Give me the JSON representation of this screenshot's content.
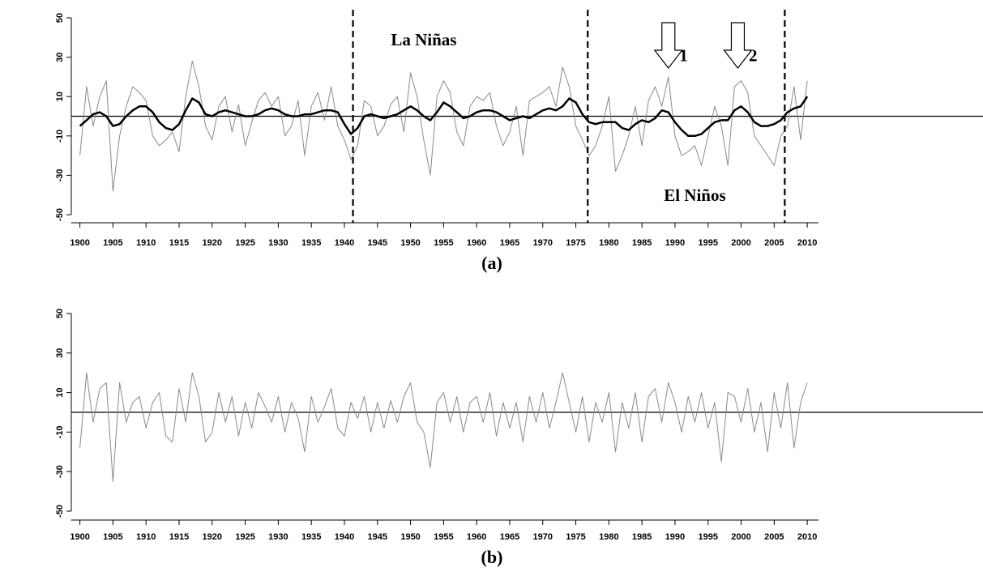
{
  "chart_data": [
    {
      "type": "line",
      "caption": "(a)",
      "x": [
        1900,
        1901,
        1902,
        1903,
        1904,
        1905,
        1906,
        1907,
        1908,
        1909,
        1910,
        1911,
        1912,
        1913,
        1914,
        1915,
        1916,
        1917,
        1918,
        1919,
        1920,
        1921,
        1922,
        1923,
        1924,
        1925,
        1926,
        1927,
        1928,
        1929,
        1930,
        1931,
        1932,
        1933,
        1934,
        1935,
        1936,
        1937,
        1938,
        1939,
        1940,
        1941,
        1942,
        1943,
        1944,
        1945,
        1946,
        1947,
        1948,
        1949,
        1950,
        1951,
        1952,
        1953,
        1954,
        1955,
        1956,
        1957,
        1958,
        1959,
        1960,
        1961,
        1962,
        1963,
        1964,
        1965,
        1966,
        1967,
        1968,
        1969,
        1970,
        1971,
        1972,
        1973,
        1974,
        1975,
        1976,
        1977,
        1978,
        1979,
        1980,
        1981,
        1982,
        1983,
        1984,
        1985,
        1986,
        1987,
        1988,
        1989,
        1990,
        1991,
        1992,
        1993,
        1994,
        1995,
        1996,
        1997,
        1998,
        1999,
        2000,
        2001,
        2002,
        2003,
        2004,
        2005,
        2006,
        2007,
        2008,
        2009,
        2010
      ],
      "series": [
        {
          "color": "#8a8a8a",
          "width": 1,
          "values": [
            -20,
            15,
            -5,
            10,
            18,
            -38,
            -10,
            5,
            15,
            12,
            8,
            -10,
            -15,
            -12,
            -8,
            -18,
            10,
            28,
            15,
            -5,
            -12,
            5,
            10,
            -8,
            6,
            -15,
            -3,
            8,
            12,
            5,
            10,
            -10,
            -5,
            8,
            -20,
            5,
            12,
            -2,
            15,
            -5,
            -12,
            -22,
            -15,
            8,
            5,
            -10,
            -5,
            6,
            10,
            -8,
            22,
            10,
            -12,
            -30,
            10,
            18,
            12,
            -8,
            -15,
            5,
            10,
            8,
            12,
            -5,
            -15,
            -8,
            5,
            -20,
            8,
            10,
            12,
            15,
            5,
            25,
            15,
            -5,
            -12,
            -20,
            -15,
            -5,
            10,
            -28,
            -20,
            -10,
            5,
            -15,
            8,
            15,
            5,
            20,
            -10,
            -20,
            -18,
            -15,
            -25,
            -10,
            5,
            -5,
            -25,
            15,
            18,
            12,
            -10,
            -15,
            -20,
            -25,
            -10,
            -5,
            15,
            -12,
            18
          ]
        },
        {
          "color": "#000000",
          "width": 2.5,
          "values": [
            -5,
            -2,
            1,
            2,
            0,
            -5,
            -4,
            0,
            3,
            5,
            5,
            2,
            -3,
            -6,
            -7,
            -4,
            3,
            9,
            7,
            1,
            0,
            2,
            3,
            2,
            1,
            0,
            0,
            1,
            3,
            4,
            3,
            1,
            0,
            0,
            1,
            1,
            2,
            3,
            3,
            2,
            -4,
            -9,
            -6,
            0,
            1,
            0,
            -1,
            0,
            1,
            3,
            5,
            3,
            0,
            -2,
            2,
            7,
            5,
            2,
            -1,
            0,
            2,
            3,
            3,
            2,
            0,
            -2,
            -1,
            0,
            -1,
            1,
            3,
            4,
            3,
            5,
            9,
            7,
            1,
            -3,
            -4,
            -3,
            -3,
            -3,
            -6,
            -7,
            -4,
            -2,
            -3,
            -1,
            3,
            2,
            -3,
            -7,
            -10,
            -10,
            -9,
            -6,
            -3,
            -2,
            -2,
            3,
            5,
            2,
            -3,
            -5,
            -5,
            -4,
            -2,
            2,
            4,
            5,
            10
          ]
        }
      ],
      "hline": 0,
      "vlines": [
        1941.3,
        1976.8,
        2006.6
      ],
      "arrows_x": [
        1989,
        1999.5
      ],
      "annotations": [
        {
          "text": "La Niñas",
          "x": 1952,
          "y": 38
        },
        {
          "text": "El Niños",
          "x": 1993,
          "y": -41
        },
        {
          "text": "1",
          "x": 1991.3,
          "y": 30
        },
        {
          "text": "2",
          "x": 2001.8,
          "y": 30
        }
      ],
      "xlim": [
        1898.7,
        2011.7
      ],
      "ylim": [
        -50,
        50
      ],
      "xticks": [
        1900,
        1905,
        1910,
        1915,
        1920,
        1925,
        1930,
        1935,
        1940,
        1945,
        1950,
        1955,
        1960,
        1965,
        1970,
        1975,
        1980,
        1985,
        1990,
        1995,
        2000,
        2005,
        2010
      ],
      "yticks": [
        50,
        30,
        10,
        -10,
        -30,
        -50
      ]
    },
    {
      "type": "line",
      "caption": "(b)",
      "x": [
        1900,
        1901,
        1902,
        1903,
        1904,
        1905,
        1906,
        1907,
        1908,
        1909,
        1910,
        1911,
        1912,
        1913,
        1914,
        1915,
        1916,
        1917,
        1918,
        1919,
        1920,
        1921,
        1922,
        1923,
        1924,
        1925,
        1926,
        1927,
        1928,
        1929,
        1930,
        1931,
        1932,
        1933,
        1934,
        1935,
        1936,
        1937,
        1938,
        1939,
        1940,
        1941,
        1942,
        1943,
        1944,
        1945,
        1946,
        1947,
        1948,
        1949,
        1950,
        1951,
        1952,
        1953,
        1954,
        1955,
        1956,
        1957,
        1958,
        1959,
        1960,
        1961,
        1962,
        1963,
        1964,
        1965,
        1966,
        1967,
        1968,
        1969,
        1970,
        1971,
        1972,
        1973,
        1974,
        1975,
        1976,
        1977,
        1978,
        1979,
        1980,
        1981,
        1982,
        1983,
        1984,
        1985,
        1986,
        1987,
        1988,
        1989,
        1990,
        1991,
        1992,
        1993,
        1994,
        1995,
        1996,
        1997,
        1998,
        1999,
        2000,
        2001,
        2002,
        2003,
        2004,
        2005,
        2006,
        2007,
        2008,
        2009,
        2010
      ],
      "series": [
        {
          "color": "#8a8a8a",
          "width": 1,
          "values": [
            -18,
            20,
            -5,
            12,
            15,
            -35,
            15,
            -5,
            5,
            8,
            -8,
            5,
            10,
            -12,
            -15,
            12,
            -5,
            20,
            8,
            -15,
            -10,
            10,
            -5,
            8,
            -12,
            5,
            -8,
            10,
            3,
            -5,
            8,
            -10,
            5,
            -3,
            -20,
            8,
            -5,
            3,
            12,
            -8,
            -12,
            5,
            -3,
            8,
            -10,
            5,
            -8,
            6,
            -5,
            8,
            15,
            -5,
            -10,
            -28,
            5,
            10,
            -5,
            8,
            -10,
            5,
            8,
            -5,
            10,
            -12,
            5,
            -8,
            5,
            -15,
            8,
            -5,
            10,
            -8,
            5,
            20,
            5,
            -10,
            8,
            -15,
            5,
            -5,
            10,
            -20,
            5,
            -8,
            10,
            -15,
            8,
            12,
            -5,
            15,
            5,
            -10,
            8,
            -5,
            10,
            -8,
            5,
            -25,
            10,
            8,
            -5,
            12,
            -10,
            5,
            -20,
            10,
            -8,
            15,
            -18,
            5,
            15
          ]
        }
      ],
      "hline": 0,
      "xlim": [
        1898.7,
        2011.7
      ],
      "ylim": [
        -50,
        50
      ],
      "xticks": [
        1900,
        1905,
        1910,
        1915,
        1920,
        1925,
        1930,
        1935,
        1940,
        1945,
        1950,
        1955,
        1960,
        1965,
        1970,
        1975,
        1980,
        1985,
        1990,
        1995,
        2000,
        2005,
        2010
      ],
      "yticks": [
        50,
        30,
        10,
        -10,
        -30,
        -50
      ]
    }
  ]
}
